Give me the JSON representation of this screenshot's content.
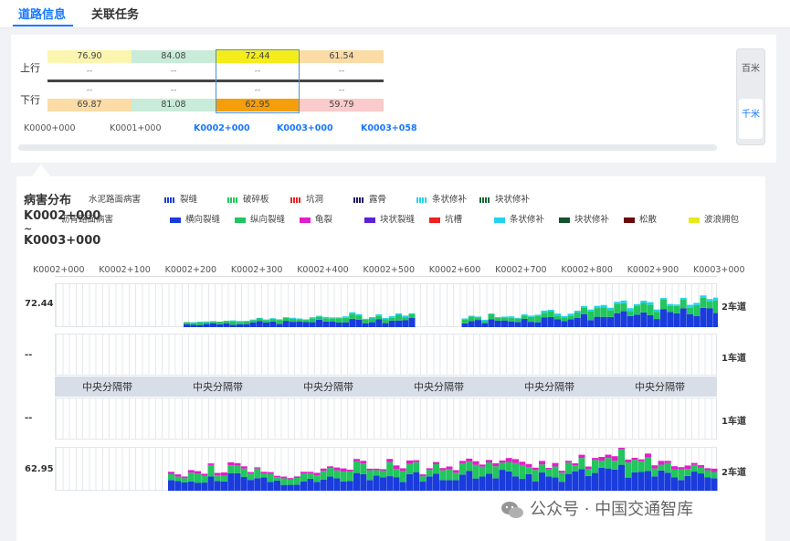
{
  "tabs": [
    {
      "label": "道路信息",
      "active": true
    },
    {
      "label": "关联任务",
      "active": false
    }
  ],
  "summary": {
    "up_label": "上行",
    "down_label": "下行",
    "up_values": [
      "76.90",
      "84.08",
      "72.44",
      "61.54"
    ],
    "up_dash": [
      "--",
      "--",
      "--",
      "--"
    ],
    "down_dash": [
      "--",
      "--",
      "--",
      "--"
    ],
    "down_values": [
      "69.87",
      "81.08",
      "62.95",
      "59.79"
    ],
    "up_colors": [
      "#fbf5b0",
      "#c8ecd9",
      "#f5ec1c",
      "#fbdba6"
    ],
    "down_colors": [
      "#fbdba6",
      "#c8ecd9",
      "#f59e0b",
      "#fbcaca"
    ],
    "ticks": [
      "K0000+000",
      "K0001+000",
      "K0002+000",
      "K0003+000",
      "K0003+058"
    ],
    "active_ticks": [
      2,
      3,
      4
    ]
  },
  "unit_toggle": {
    "hundred": "百米",
    "thousand": "千米",
    "selected": "千米"
  },
  "disease": {
    "title": "病害分布",
    "range_start": "K0002+000",
    "range_tilde": "~",
    "range_end": "K0003+000",
    "cement_title": "水泥路面病害",
    "asphalt_title": "沥青路面病害",
    "cement_legend": [
      {
        "label": "裂缝",
        "color": "#1a3cdc"
      },
      {
        "label": "破碎板",
        "color": "#22c55e"
      },
      {
        "label": "坑洞",
        "color": "#ef2020"
      },
      {
        "label": "露骨",
        "color": "#1e1b6b"
      },
      {
        "label": "条状修补",
        "color": "#22d3ee"
      },
      {
        "label": "块状修补",
        "color": "#166534"
      }
    ],
    "asphalt_legend": [
      {
        "label": "横向裂缝",
        "color": "#1a3cdc"
      },
      {
        "label": "纵向裂缝",
        "color": "#22c55e"
      },
      {
        "label": "龟裂",
        "color": "#e21ec8"
      },
      {
        "label": "块状裂缝",
        "color": "#5b21d6"
      },
      {
        "label": "坑槽",
        "color": "#ef2020"
      },
      {
        "label": "条状修补",
        "color": "#22d3ee"
      },
      {
        "label": "块状修补",
        "color": "#14532d"
      },
      {
        "label": "松散",
        "color": "#6b0a0a"
      },
      {
        "label": "波浪拥包",
        "color": "#e8e81a"
      }
    ],
    "axis_ticks": [
      "K0002+000",
      "K0002+100",
      "K0002+200",
      "K0002+300",
      "K0002+400",
      "K0002+500",
      "K0002+600",
      "K0002+700",
      "K0002+800",
      "K0002+900",
      "K0003+000"
    ],
    "lanes": [
      {
        "value": "72.44",
        "name": "2车道"
      },
      {
        "value": "--",
        "name": "1车道"
      },
      {
        "value": "--",
        "name": "1车道"
      },
      {
        "value": "62.95",
        "name": "2车道"
      }
    ],
    "median_label": "中央分隔带",
    "median_repeat": 6
  },
  "watermark": "公众号 · 中国交通智库"
}
